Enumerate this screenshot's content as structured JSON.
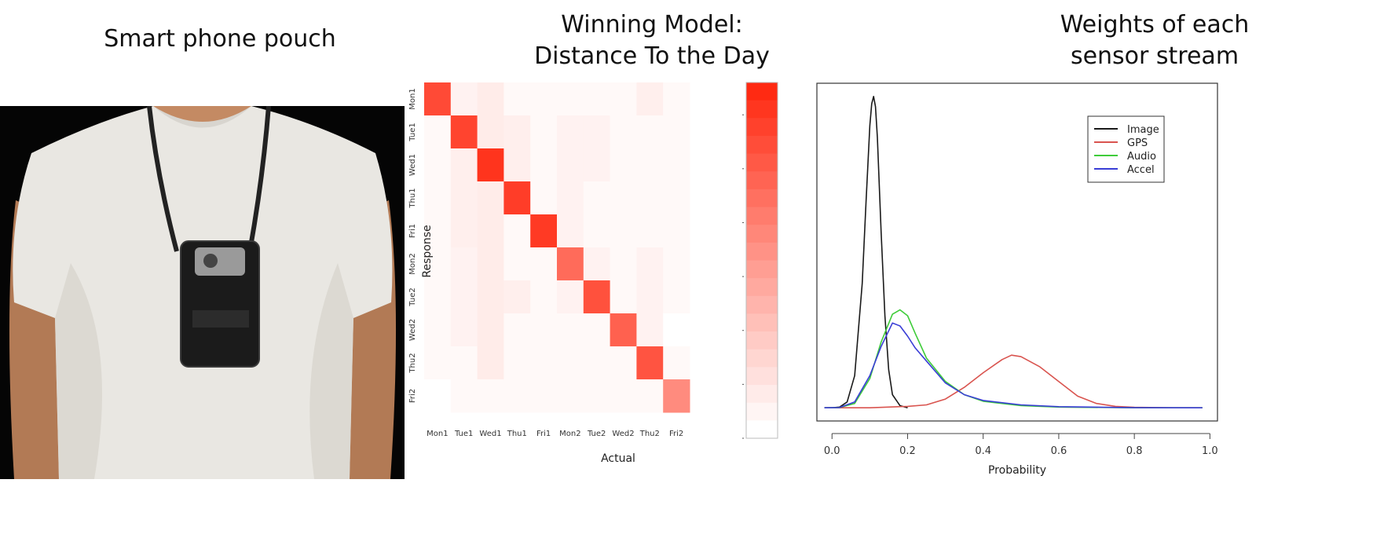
{
  "photo_panel": {
    "title": "Smart phone pouch"
  },
  "heatmap_panel": {
    "title_line1": "Winning Model:",
    "title_line2": "Distance To the Day"
  },
  "density_panel": {
    "title_line1": "Weights of each",
    "title_line2": "sensor stream"
  },
  "chart_data": [
    {
      "type": "heatmap",
      "title": "Winning Model: Distance To the Day",
      "xlabel": "Actual",
      "ylabel": "Response",
      "x_categories": [
        "Mon1",
        "Tue1",
        "Wed1",
        "Thu1",
        "Fri1",
        "Mon2",
        "Tue2",
        "Wed2",
        "Thu2",
        "Fri2"
      ],
      "y_categories": [
        "Mon1",
        "Tue1",
        "Wed1",
        "Thu1",
        "Fri1",
        "Mon2",
        "Tue2",
        "Wed2",
        "Thu2",
        "Fri2"
      ],
      "values": [
        [
          5.6,
          0.4,
          0.6,
          0.2,
          0.2,
          0.2,
          0.2,
          0.2,
          0.5,
          0.2
        ],
        [
          0.2,
          5.8,
          0.6,
          0.5,
          0.2,
          0.4,
          0.4,
          0.2,
          0.2,
          0.2
        ],
        [
          0.2,
          0.5,
          6.3,
          0.5,
          0.2,
          0.4,
          0.4,
          0.2,
          0.2,
          0.2
        ],
        [
          0.2,
          0.5,
          0.6,
          6.0,
          0.2,
          0.4,
          0.2,
          0.2,
          0.2,
          0.2
        ],
        [
          0.2,
          0.5,
          0.6,
          0.2,
          6.1,
          0.4,
          0.2,
          0.2,
          0.2,
          0.2
        ],
        [
          0.2,
          0.4,
          0.6,
          0.2,
          0.2,
          4.6,
          0.4,
          0.2,
          0.4,
          0.2
        ],
        [
          0.2,
          0.4,
          0.6,
          0.5,
          0.2,
          0.4,
          5.4,
          0.2,
          0.4,
          0.2
        ],
        [
          0.2,
          0.4,
          0.6,
          0.2,
          0.2,
          0.2,
          0.2,
          4.9,
          0.4,
          0.0
        ],
        [
          0.2,
          0.2,
          0.6,
          0.2,
          0.2,
          0.2,
          0.2,
          0.2,
          5.3,
          0.2
        ],
        [
          0.0,
          0.2,
          0.2,
          0.2,
          0.2,
          0.2,
          0.2,
          0.2,
          0.2,
          3.6
        ]
      ],
      "colorbar": {
        "min": 0,
        "max": 6.6,
        "ticks": [
          0,
          1,
          2,
          3,
          4,
          5,
          6
        ]
      },
      "colors": {
        "low": "#ffffff",
        "high": "#ff2a12"
      }
    },
    {
      "type": "line",
      "title": "Weights of each sensor stream",
      "xlabel": "Probability",
      "ylabel": "",
      "xlim": [
        -0.04,
        1.02
      ],
      "ylim": [
        -0.9,
        22.2
      ],
      "xticks": [
        "0.0",
        "0.2",
        "0.4",
        "0.6",
        "0.8",
        "1.0"
      ],
      "yticks": [
        "0",
        "5",
        "10",
        "15",
        "20"
      ],
      "legend_position": "top-right",
      "series": [
        {
          "name": "Image",
          "color": "#1a1a1a",
          "x": [
            -0.02,
            0.0,
            0.02,
            0.04,
            0.06,
            0.08,
            0.09,
            0.1,
            0.105,
            0.11,
            0.115,
            0.12,
            0.13,
            0.14,
            0.15,
            0.16,
            0.18,
            0.2
          ],
          "y": [
            0,
            0,
            0.05,
            0.4,
            2.2,
            8.5,
            14,
            19.3,
            20.8,
            21.3,
            20.6,
            18.5,
            12,
            6.3,
            2.6,
            0.9,
            0.15,
            0
          ]
        },
        {
          "name": "GPS",
          "color": "#d9544f",
          "x": [
            -0.02,
            0.1,
            0.2,
            0.25,
            0.3,
            0.35,
            0.4,
            0.45,
            0.475,
            0.5,
            0.55,
            0.6,
            0.65,
            0.7,
            0.75,
            0.8,
            0.9,
            0.98
          ],
          "y": [
            0,
            0,
            0.1,
            0.2,
            0.6,
            1.4,
            2.4,
            3.3,
            3.6,
            3.5,
            2.8,
            1.8,
            0.8,
            0.3,
            0.1,
            0.04,
            0,
            0
          ]
        },
        {
          "name": "Audio",
          "color": "#3fcc3a",
          "x": [
            -0.02,
            0.02,
            0.06,
            0.1,
            0.13,
            0.16,
            0.18,
            0.2,
            0.22,
            0.25,
            0.3,
            0.35,
            0.4,
            0.5,
            0.6,
            0.8,
            0.98
          ],
          "y": [
            0,
            0.02,
            0.3,
            2.0,
            4.5,
            6.4,
            6.7,
            6.3,
            5.1,
            3.4,
            1.8,
            0.9,
            0.45,
            0.15,
            0.05,
            0,
            0
          ]
        },
        {
          "name": "Accel",
          "color": "#3a3ed6",
          "x": [
            -0.02,
            0.02,
            0.06,
            0.1,
            0.13,
            0.16,
            0.18,
            0.2,
            0.22,
            0.25,
            0.3,
            0.35,
            0.4,
            0.5,
            0.6,
            0.8,
            0.98
          ],
          "y": [
            0,
            0.02,
            0.4,
            2.2,
            4.2,
            5.8,
            5.6,
            4.9,
            4.1,
            3.2,
            1.7,
            0.9,
            0.5,
            0.2,
            0.08,
            0.01,
            0
          ]
        }
      ]
    }
  ]
}
